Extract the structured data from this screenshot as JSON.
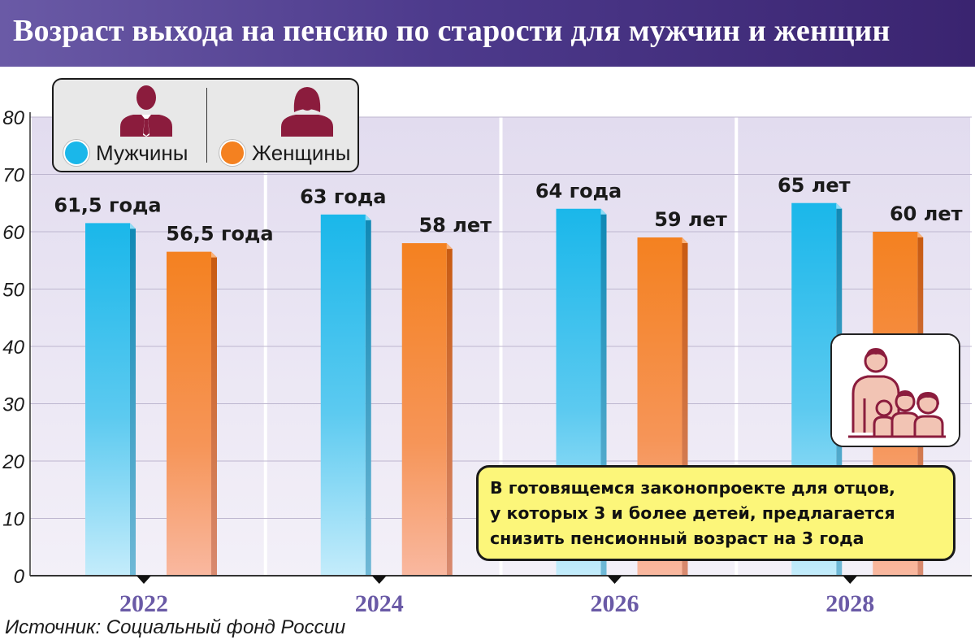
{
  "header": {
    "title": "Возраст выхода на пенсию по старости для мужчин и женщин"
  },
  "source": "Источник: Социальный фонд России",
  "legend": {
    "items": [
      {
        "label": "Мужчины",
        "color": "#1ab7ea",
        "icon": "man-silhouette-icon"
      },
      {
        "label": "Женщины",
        "color": "#f48120",
        "icon": "woman-silhouette-icon"
      }
    ]
  },
  "note": {
    "lines": [
      "В готовящемся законопроекте для отцов,",
      "у которых 3 и более детей, предлагается",
      "снизить пенсионный возраст на 3 года"
    ],
    "icon": "family-icon"
  },
  "colors": {
    "men": "#1ab7ea",
    "women": "#f48120",
    "header": "#4d3a8c",
    "year": "#6a5aa6",
    "note": "#fcf67a",
    "icon": "#8b1c3d"
  },
  "chart_data": {
    "type": "bar",
    "categories": [
      "2022",
      "2024",
      "2026",
      "2028"
    ],
    "series": [
      {
        "name": "Мужчины",
        "values": [
          61.5,
          63,
          64,
          65
        ],
        "labels": [
          "61,5 года",
          "63 года",
          "64 года",
          "65 лет"
        ]
      },
      {
        "name": "Женщины",
        "values": [
          56.5,
          58,
          59,
          60
        ],
        "labels": [
          "56,5 года",
          "58 лет",
          "59 лет",
          "60 лет"
        ]
      }
    ],
    "yticks": [
      0,
      10,
      20,
      30,
      40,
      50,
      60,
      70,
      80
    ],
    "ylim": [
      0,
      80
    ],
    "grid": true,
    "legend": "top-left"
  }
}
